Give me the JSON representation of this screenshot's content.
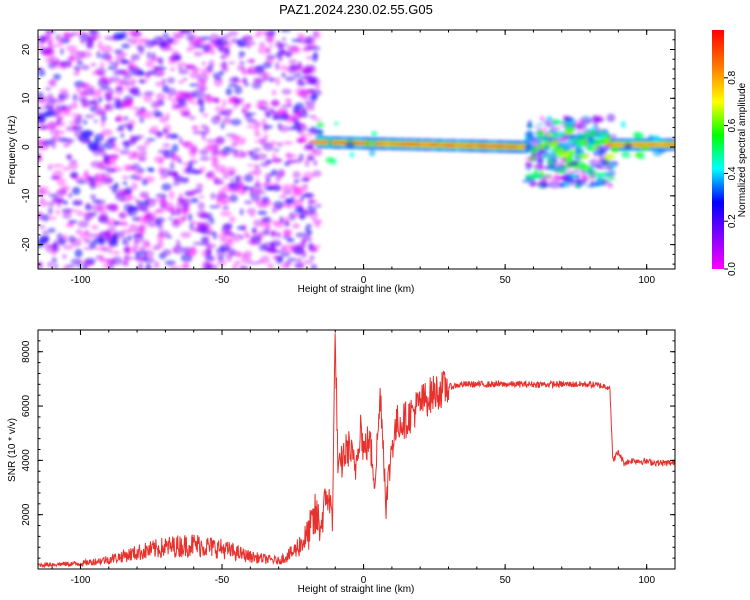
{
  "title": "PAZ1.2024.230.02.55.G05",
  "chart_data": [
    {
      "type": "heatmap",
      "xlabel": "Height of straight line (km)",
      "ylabel": "Frequency (Hz)",
      "xlim": [
        -115,
        110
      ],
      "ylim": [
        -25,
        24
      ],
      "xticks": [
        "-100",
        "-50",
        "0",
        "50",
        "100"
      ],
      "yticks": [
        "-20",
        "-10",
        "0",
        "10",
        "20"
      ],
      "colorbar": {
        "label": "Normalized spectral amplitude",
        "range": [
          0,
          1
        ],
        "ticks": [
          "0.0",
          "0.2",
          "0.4",
          "0.6",
          "0.8"
        ],
        "colormap": [
          "#ff00ff",
          "#7f00ff",
          "#0000ff",
          "#00ffff",
          "#00ff00",
          "#ffff00",
          "#ff7f00",
          "#ff0000"
        ]
      },
      "regions": [
        {
          "x": [
            -115,
            -16
          ],
          "freq_spread": [
            -25,
            24
          ],
          "amplitude_max": 0.3,
          "description_level": "noise"
        },
        {
          "x": [
            -16,
            58
          ],
          "center_freq": [
            1,
            0
          ],
          "amplitude_max": 0.95,
          "description_level": "signal"
        },
        {
          "x": [
            58,
            88
          ],
          "freq_spread": [
            -8,
            6
          ],
          "amplitude_max": 0.6,
          "description_level": "mixed"
        },
        {
          "x": [
            88,
            110
          ],
          "center_freq": [
            0.5,
            0.5
          ],
          "amplitude_max": 0.9,
          "description_level": "signal"
        }
      ],
      "grid": false
    },
    {
      "type": "line",
      "xlabel": "Height of straight line (km)",
      "ylabel": "SNR (10 * v/v)",
      "xlim": [
        -115,
        110
      ],
      "ylim": [
        0,
        8800
      ],
      "xticks": [
        "-100",
        "-50",
        "0",
        "50",
        "100"
      ],
      "yticks": [
        "2000",
        "4000",
        "6000",
        "8000"
      ],
      "line_color": "#e8302c",
      "series": [
        {
          "x": [
            -115,
            -100,
            -90,
            -80,
            -70,
            -60,
            -50,
            -40,
            -30,
            -25,
            -20,
            -17,
            -15,
            -13,
            -11,
            -10,
            -9,
            -7,
            -5,
            -3,
            -1,
            0,
            2,
            4,
            6,
            8,
            10,
            12,
            15,
            20,
            25,
            30,
            35,
            40,
            50,
            60,
            70,
            80,
            87,
            88,
            90,
            92,
            95,
            100,
            105,
            110
          ],
          "values": [
            150,
            200,
            350,
            600,
            800,
            900,
            750,
            450,
            300,
            600,
            1200,
            1900,
            1600,
            2800,
            2000,
            8700,
            3400,
            4200,
            4500,
            3600,
            5400,
            4300,
            4800,
            3300,
            6500,
            2400,
            4600,
            5400,
            5500,
            6100,
            6500,
            6700,
            6800,
            6800,
            6800,
            6800,
            6800,
            6800,
            6700,
            4000,
            4300,
            3900,
            4000,
            3950,
            3900,
            3900
          ]
        }
      ],
      "grid": false
    }
  ]
}
